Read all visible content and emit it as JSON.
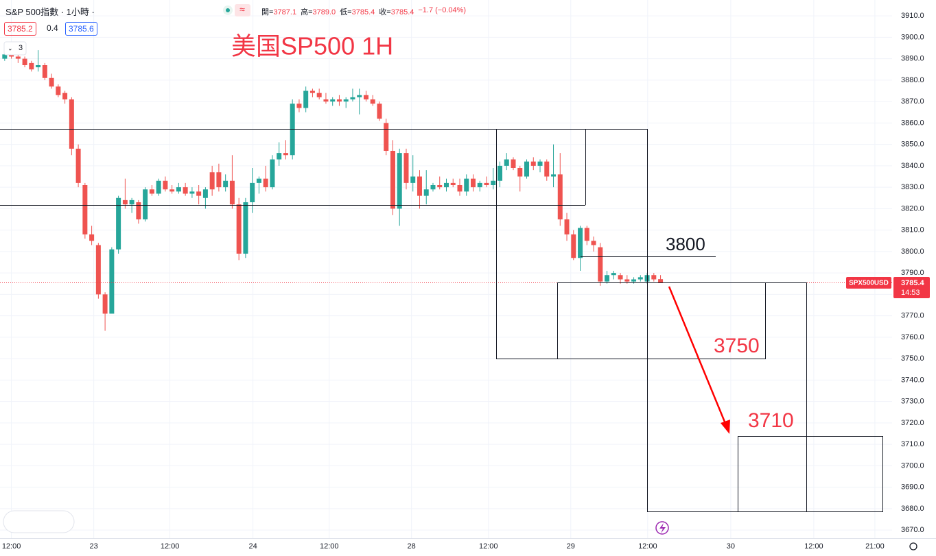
{
  "header": {
    "symbol": "S&P 500指數 · 1小時 ·",
    "bid": "3785.2",
    "spread": "0.4",
    "ask": "3785.6",
    "ohlc": [
      {
        "label": "開=",
        "value": "3787.1"
      },
      {
        "label": "高=",
        "value": "3789.0"
      },
      {
        "label": "低=",
        "value": "3785.4"
      },
      {
        "label": "收=",
        "value": "3785.4"
      }
    ],
    "change": "−1.7 (−0.04%)"
  },
  "indicator_count": "3",
  "chart_data": {
    "type": "candlestick",
    "title": "美国SP500 1H",
    "x": [
      -1,
      0,
      1,
      2,
      3,
      4,
      5,
      6,
      7,
      8,
      9,
      10,
      11,
      12,
      13,
      14,
      15,
      16,
      17,
      18,
      19,
      20,
      21,
      22,
      23,
      24,
      25,
      26,
      27,
      28,
      29,
      30,
      31,
      32,
      33,
      34,
      35,
      36,
      37,
      38,
      39,
      40,
      41,
      42,
      43,
      44,
      45,
      46,
      47,
      48,
      49,
      50,
      51,
      52,
      53,
      54,
      55,
      56,
      57,
      58,
      59,
      60,
      61,
      62,
      63,
      64,
      65,
      66,
      67,
      68,
      69,
      70,
      71,
      72,
      73,
      74,
      75,
      76,
      77,
      78,
      79,
      80,
      81,
      82,
      83,
      84,
      85,
      86,
      87,
      88,
      89,
      90,
      91,
      92,
      93,
      94,
      95,
      96,
      97
    ],
    "open": [
      3890,
      3892,
      3891,
      3890,
      3888,
      3886,
      3887,
      3881,
      3877,
      3874,
      3871,
      3848,
      3831,
      3808,
      3803,
      3780,
      3771,
      3801,
      3824,
      3822,
      3823,
      3815,
      3829,
      3827,
      3833,
      3829,
      3828,
      3830,
      3827,
      3828,
      3825,
      3837,
      3837,
      3830,
      3833,
      3822,
      3799,
      3823,
      3832,
      3834,
      3830,
      3843,
      3846,
      3845,
      3869,
      3867,
      3875,
      3874,
      3871,
      3870,
      3871,
      3870,
      3871,
      3872,
      3873,
      3871,
      3869,
      3860,
      3847,
      3820,
      3846,
      3832,
      3835,
      3826,
      3829,
      3831,
      3830,
      3832,
      3831,
      3828,
      3834,
      3830,
      3832,
      3831,
      3833,
      3840,
      3843,
      3839,
      3835,
      3842,
      3840,
      3842,
      3835,
      3836,
      3815,
      3808,
      3797,
      3811,
      3805,
      3802,
      3786,
      3789,
      3789,
      3787,
      3786,
      3787,
      3786,
      3789,
      3787.1
    ],
    "high": [
      3893,
      3893,
      3892,
      3891,
      3889,
      3894,
      3888,
      3883,
      3878,
      3875,
      3872,
      3850,
      3832,
      3812,
      3804,
      3781,
      3802,
      3826,
      3834,
      3825,
      3824,
      3830,
      3831,
      3834,
      3835,
      3831,
      3832,
      3832,
      3830,
      3831,
      3830,
      3840,
      3841,
      3836,
      3845,
      3825,
      3825,
      3839,
      3835,
      3840,
      3845,
      3851,
      3852,
      3871,
      3871,
      3877,
      3876,
      3876,
      3874,
      3872,
      3873,
      3872,
      3876,
      3876,
      3875,
      3873,
      3870,
      3862,
      3852,
      3848,
      3848,
      3845,
      3838,
      3838,
      3832,
      3835,
      3834,
      3834,
      3834,
      3836,
      3836,
      3833,
      3835,
      3839,
      3842,
      3846,
      3844,
      3840,
      3843,
      3844,
      3843,
      3843,
      3850,
      3846,
      3818,
      3810,
      3812,
      3812,
      3807,
      3804,
      3791,
      3791,
      3790,
      3789,
      3788,
      3789,
      3790,
      3790,
      3789.0
    ],
    "low": [
      3889,
      3890,
      3888,
      3886,
      3884,
      3884,
      3880,
      3876,
      3872,
      3869,
      3845,
      3830,
      3806,
      3803,
      3778,
      3763,
      3771,
      3799,
      3820,
      3818,
      3813,
      3814,
      3826,
      3826,
      3828,
      3827,
      3827,
      3826,
      3825,
      3822,
      3820,
      3826,
      3828,
      3828,
      3820,
      3796,
      3797,
      3818,
      3827,
      3828,
      3829,
      3840,
      3843,
      3843,
      3865,
      3865,
      3872,
      3871,
      3869,
      3868,
      3868,
      3867,
      3870,
      3864,
      3870,
      3868,
      3861,
      3845,
      3817,
      3812,
      3829,
      3828,
      3820,
      3822,
      3828,
      3829,
      3828,
      3830,
      3826,
      3826,
      3828,
      3828,
      3830,
      3829,
      3830,
      3838,
      3838,
      3828,
      3834,
      3838,
      3837,
      3833,
      3830,
      3812,
      3805,
      3796,
      3791,
      3803,
      3800,
      3784,
      3785,
      3787,
      3785,
      3785,
      3785,
      3786,
      3785,
      3786,
      3785.4
    ],
    "close": [
      3892,
      3891,
      3890,
      3887,
      3885,
      3887,
      3881,
      3877,
      3873,
      3871,
      3848,
      3832,
      3808,
      3805,
      3780,
      3771,
      3801,
      3825,
      3822,
      3824,
      3815,
      3829,
      3827,
      3833,
      3829,
      3828,
      3830,
      3827,
      3828,
      3826,
      3829,
      3829,
      3830,
      3833,
      3822,
      3799,
      3823,
      3832,
      3834,
      3830,
      3843,
      3846,
      3845,
      3869,
      3867,
      3875,
      3874,
      3872,
      3870,
      3871,
      3870,
      3871,
      3872,
      3873,
      3871,
      3869,
      3862,
      3847,
      3820,
      3846,
      3832,
      3835,
      3826,
      3829,
      3831,
      3830,
      3832,
      3831,
      3828,
      3834,
      3830,
      3832,
      3831,
      3833,
      3840,
      3843,
      3839,
      3835,
      3842,
      3840,
      3842,
      3835,
      3836,
      3815,
      3808,
      3797,
      3811,
      3805,
      3803,
      3786,
      3789,
      3790,
      3787,
      3786,
      3787,
      3788,
      3789,
      3787,
      3785.4
    ],
    "up_color": "#26a69a",
    "down_color": "#ef5350",
    "xlim": [
      -1.7,
      131.6
    ],
    "xticks": [
      {
        "value": 0,
        "label": "12:00"
      },
      {
        "value": 12.31,
        "label": "23"
      },
      {
        "value": 23.69,
        "label": "12:00"
      },
      {
        "value": 36.1,
        "label": "24"
      },
      {
        "value": 47.49,
        "label": "12:00"
      },
      {
        "value": 59.79,
        "label": "28"
      },
      {
        "value": 71.28,
        "label": "12:00"
      },
      {
        "value": 83.59,
        "label": "29"
      },
      {
        "value": 95.08,
        "label": "12:00"
      },
      {
        "value": 107.49,
        "label": "30"
      },
      {
        "value": 119.9,
        "label": "12:00"
      },
      {
        "value": 129.03,
        "label": "21:00"
      }
    ],
    "ylim": [
      3666.2,
      3917.4
    ],
    "yticks": [
      {
        "value": 3670,
        "label": "3670.0"
      },
      {
        "value": 3680,
        "label": "3680.0"
      },
      {
        "value": 3690,
        "label": "3690.0"
      },
      {
        "value": 3700,
        "label": "3700.0"
      },
      {
        "value": 3710,
        "label": "3710.0"
      },
      {
        "value": 3720,
        "label": "3720.0"
      },
      {
        "value": 3730,
        "label": "3730.0"
      },
      {
        "value": 3740,
        "label": "3740.0"
      },
      {
        "value": 3750,
        "label": "3750.0"
      },
      {
        "value": 3760,
        "label": "3760.0"
      },
      {
        "value": 3770,
        "label": "3770.0"
      },
      {
        "value": 3780,
        "label": "3780.0"
      },
      {
        "value": 3790,
        "label": "3790.0"
      },
      {
        "value": 3800,
        "label": "3800.0"
      },
      {
        "value": 3810,
        "label": "3810.0"
      },
      {
        "value": 3820,
        "label": "3820.0"
      },
      {
        "value": 3830,
        "label": "3830.0"
      },
      {
        "value": 3840,
        "label": "3840.0"
      },
      {
        "value": 3850,
        "label": "3850.0"
      },
      {
        "value": 3860,
        "label": "3860.0"
      },
      {
        "value": 3870,
        "label": "3870.0"
      },
      {
        "value": 3880,
        "label": "3880.0"
      },
      {
        "value": 3890,
        "label": "3890.0"
      },
      {
        "value": 3900,
        "label": "3900.0"
      },
      {
        "value": 3910,
        "label": "3910.0"
      }
    ],
    "grid": true,
    "last_price": 3785.4,
    "price_symbol": "SPX500USD",
    "countdown": "14:53",
    "annotations": [
      "3800",
      "3750",
      "3710"
    ]
  }
}
